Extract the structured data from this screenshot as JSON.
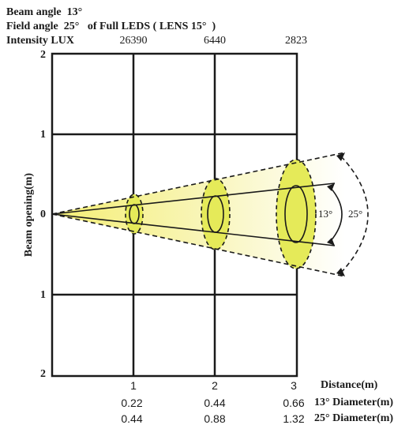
{
  "header": {
    "beam_angle": "Beam angle  13°",
    "field_angle": "Field angle  25°   of Full LEDS ( LENS 15°  )",
    "intensity_label": "Intensity LUX"
  },
  "chart_data": {
    "type": "beam-spread",
    "ylabel": "Beam opening(m)",
    "y_ticks": [
      "2",
      "1",
      "0",
      "1",
      "2"
    ],
    "x_label": "Distance(m)",
    "distances": [
      "1",
      "2",
      "3"
    ],
    "intensity_lux": [
      "26390",
      "6440",
      "2823"
    ],
    "beam_angle_deg": 13,
    "field_angle_deg": 25,
    "diameter_13": [
      "0.22",
      "0.44",
      "0.66"
    ],
    "diameter_25": [
      "0.44",
      "0.88",
      "1.32"
    ],
    "diameter_13_label": "13° Diameter(m)",
    "diameter_25_label": "25° Diameter(m)",
    "beam_angle_label": "13°",
    "field_angle_label": "25°",
    "colors": {
      "spot_fill": "#e5ea59",
      "gradient_start": "#f5f27a",
      "grid": "#1a1a1a"
    }
  }
}
